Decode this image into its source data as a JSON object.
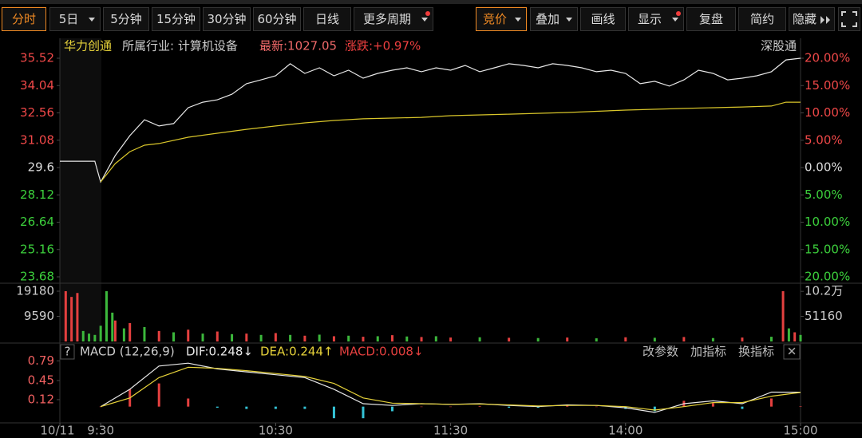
{
  "toolbar": {
    "left": [
      "分时",
      "5日",
      "5分钟",
      "15分钟",
      "30分钟",
      "60分钟",
      "日线",
      "更多周期"
    ],
    "right": [
      "竞价",
      "叠加",
      "画线",
      "显示",
      "复盘",
      "简约",
      "隐藏"
    ]
  },
  "info": {
    "name": "华力创通",
    "industry": "所属行业: 计算机设备",
    "latest": "最新:1027.05",
    "change": "涨跌:+0.97%",
    "connect": "深股通"
  },
  "macd_panel": {
    "help": "?",
    "buttons": [
      "改参数",
      "加指标",
      "换指标"
    ],
    "close": "✕"
  },
  "chart_data": [
    {
      "type": "line",
      "xlim": [
        -14,
        240
      ],
      "ylim": [
        23.68,
        35.52
      ],
      "yticks": [
        35.52,
        34.04,
        32.56,
        31.08,
        29.6,
        28.12,
        26.64,
        25.16,
        23.68
      ],
      "y2lim": [
        -20,
        20
      ],
      "y2ticks": [
        {
          "value": 20,
          "label": "20.00%"
        },
        {
          "value": 15,
          "label": "15.00%"
        },
        {
          "value": 10,
          "label": "10.00%"
        },
        {
          "value": 5,
          "label": "5.00%"
        },
        {
          "value": 0,
          "label": "0.00%"
        },
        {
          "value": -5,
          "label": "5.00%"
        },
        {
          "value": -10,
          "label": "10.00%"
        },
        {
          "value": -15,
          "label": "15.00%"
        },
        {
          "value": -20,
          "label": "20.00%"
        }
      ],
      "series": [
        {
          "color": "#e8e8e8",
          "x": [
            -14,
            -2,
            0,
            5,
            10,
            15,
            20,
            25,
            30,
            35,
            40,
            45,
            50,
            55,
            60,
            65,
            70,
            75,
            80,
            85,
            90,
            95,
            100,
            105,
            110,
            115,
            120,
            125,
            130,
            135,
            140,
            145,
            150,
            155,
            160,
            165,
            170,
            175,
            180,
            185,
            190,
            195,
            200,
            205,
            210,
            215,
            220,
            225,
            230,
            235,
            240
          ],
          "values": [
            29.94,
            29.94,
            28.82,
            30.25,
            31.33,
            32.19,
            31.85,
            31.98,
            32.84,
            33.14,
            33.27,
            33.57,
            34.14,
            34.35,
            34.57,
            35.22,
            34.7,
            35.0,
            34.57,
            34.87,
            34.44,
            34.7,
            34.87,
            35.0,
            34.79,
            35.0,
            34.87,
            35.13,
            34.79,
            35.0,
            35.22,
            35.13,
            35.0,
            35.22,
            35.13,
            35.0,
            34.79,
            34.87,
            34.7,
            34.14,
            34.27,
            34.01,
            34.35,
            34.87,
            34.7,
            34.35,
            34.44,
            34.57,
            34.79,
            35.43,
            35.52
          ]
        },
        {
          "color": "#d9c62a",
          "x": [
            0,
            5,
            10,
            15,
            20,
            30,
            40,
            50,
            60,
            70,
            80,
            90,
            100,
            110,
            120,
            140,
            160,
            180,
            200,
            220,
            230,
            235,
            240
          ],
          "values": [
            28.82,
            29.81,
            30.46,
            30.81,
            30.9,
            31.24,
            31.46,
            31.67,
            31.85,
            32.02,
            32.15,
            32.24,
            32.28,
            32.32,
            32.41,
            32.49,
            32.58,
            32.71,
            32.8,
            32.88,
            32.93,
            33.14,
            33.14
          ]
        }
      ]
    },
    {
      "type": "bar",
      "xlim": [
        -14,
        240
      ],
      "ylim": [
        0,
        19180
      ],
      "yticks": [
        19180,
        9590
      ],
      "y2lim": [
        0,
        102320
      ],
      "y2ticks": [
        {
          "value": 102000,
          "label": "10.2万"
        },
        51160
      ],
      "series": [
        {
          "color": "#e5403f",
          "x": [
            -12,
            -10,
            -8,
            5,
            10,
            20,
            30,
            40,
            50,
            60,
            70,
            80,
            90,
            100,
            110,
            120,
            140,
            160,
            180,
            200,
            220,
            234,
            238
          ],
          "values": [
            19180,
            17000,
            18500,
            8000,
            7000,
            4000,
            4500,
            3800,
            3000,
            3200,
            2200,
            2000,
            1800,
            2400,
            1700,
            1500,
            1400,
            1500,
            1600,
            1700,
            1500,
            19180,
            3500
          ]
        },
        {
          "color": "#3cb83c",
          "x": [
            -6,
            -4,
            -2,
            0,
            2,
            4,
            8,
            15,
            25,
            35,
            45,
            55,
            65,
            75,
            85,
            95,
            105,
            115,
            130,
            150,
            170,
            190,
            210,
            230,
            236,
            240
          ],
          "values": [
            4000,
            3000,
            2500,
            6000,
            19180,
            11000,
            5000,
            5500,
            3500,
            3000,
            2800,
            2500,
            2500,
            2600,
            2200,
            2000,
            1900,
            2000,
            1600,
            1300,
            1200,
            1400,
            1300,
            1800,
            5000,
            2500
          ]
        }
      ]
    },
    {
      "type": "line",
      "title": "MACD (12,26,9)",
      "xlim": [
        -14,
        240
      ],
      "ylim": [
        -0.28,
        0.89
      ],
      "yticks": [
        0.79,
        0.45,
        0.12
      ],
      "xticks": [
        {
          "value": -14,
          "label": "10/11"
        },
        {
          "value": 0,
          "label": "9:30"
        },
        {
          "value": 60,
          "label": "10:30"
        },
        {
          "value": 120,
          "label": "11:30"
        },
        {
          "value": 180,
          "label": "14:00"
        },
        {
          "value": 240,
          "label": "15:00"
        }
      ],
      "up_color": "#e5403f",
      "down_color": "#34c3d6",
      "series": [
        {
          "name": "MACD:0.008↓",
          "type": "bar",
          "color": "#e5403f",
          "x": [
            0,
            10,
            20,
            30,
            40,
            50,
            60,
            70,
            80,
            90,
            100,
            110,
            120,
            130,
            140,
            150,
            160,
            170,
            180,
            190,
            200,
            210,
            220,
            230,
            240
          ],
          "values": [
            0,
            0.3,
            0.4,
            0.14,
            -0.02,
            -0.04,
            -0.04,
            -0.04,
            -0.2,
            -0.2,
            -0.08,
            0,
            0,
            0.01,
            -0.02,
            -0.02,
            0.02,
            0,
            -0.04,
            -0.08,
            0.1,
            0.06,
            -0.04,
            0.14,
            0.008
          ]
        },
        {
          "name": "DIF:0.248↓",
          "color": "#e8e8e8",
          "x": [
            0,
            10,
            20,
            30,
            40,
            50,
            60,
            70,
            80,
            90,
            100,
            110,
            120,
            130,
            140,
            150,
            160,
            170,
            180,
            190,
            200,
            210,
            220,
            230,
            240
          ],
          "values": [
            0,
            0.3,
            0.7,
            0.75,
            0.65,
            0.6,
            0.55,
            0.5,
            0.3,
            0.05,
            0.02,
            0.05,
            0.04,
            0.05,
            0.02,
            0,
            0.03,
            0.02,
            -0.02,
            -0.1,
            0.05,
            0.1,
            0.05,
            0.25,
            0.248
          ]
        },
        {
          "name": "DEA:0.244↑",
          "color": "#e6d23a",
          "x": [
            0,
            10,
            20,
            30,
            40,
            50,
            60,
            70,
            80,
            90,
            100,
            110,
            120,
            130,
            140,
            150,
            160,
            170,
            180,
            190,
            200,
            210,
            220,
            230,
            240
          ],
          "values": [
            0,
            0.15,
            0.5,
            0.68,
            0.66,
            0.62,
            0.57,
            0.52,
            0.4,
            0.15,
            0.06,
            0.05,
            0.04,
            0.045,
            0.03,
            0.01,
            0.02,
            0.02,
            0,
            -0.06,
            0,
            0.07,
            0.07,
            0.18,
            0.244
          ]
        }
      ]
    }
  ]
}
